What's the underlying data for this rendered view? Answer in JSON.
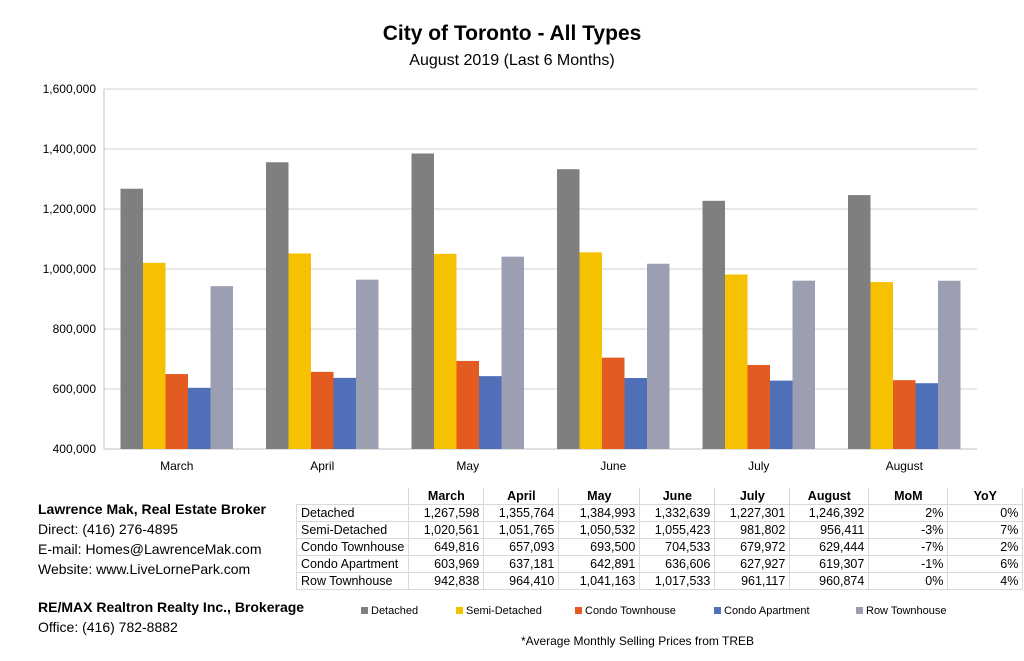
{
  "chart_data": {
    "type": "bar",
    "title": "City of Toronto - All Types",
    "subtitle": "August 2019 (Last 6 Months)",
    "xlabel": "",
    "ylabel": "",
    "ylim": [
      400000,
      1600000
    ],
    "yticks": [
      400000,
      600000,
      800000,
      1000000,
      1200000,
      1400000,
      1600000
    ],
    "ytick_labels": [
      "400,000",
      "600,000",
      "800,000",
      "1,000,000",
      "1,200,000",
      "1,400,000",
      "1,600,000"
    ],
    "grid": true,
    "legend_position": "bottom",
    "categories": [
      "March",
      "April",
      "May",
      "June",
      "July",
      "August"
    ],
    "series": [
      {
        "name": "Detached",
        "color": "#7f7f7f",
        "values": [
          1267598,
          1355764,
          1384993,
          1332639,
          1227301,
          1246392
        ]
      },
      {
        "name": "Semi-Detached",
        "color": "#f5c100",
        "values": [
          1020561,
          1051765,
          1050532,
          1055423,
          981802,
          956411
        ]
      },
      {
        "name": "Condo Townhouse",
        "color": "#e35b21",
        "values": [
          649816,
          657093,
          693500,
          704533,
          679972,
          629444
        ]
      },
      {
        "name": "Condo Apartment",
        "color": "#4f6fb8",
        "values": [
          603969,
          637181,
          642891,
          636606,
          627927,
          619307
        ]
      },
      {
        "name": "Row Townhouse",
        "color": "#9c9fb1",
        "values": [
          942838,
          964410,
          1041163,
          1017533,
          961117,
          960874
        ]
      }
    ]
  },
  "table": {
    "headers": [
      "March",
      "April",
      "May",
      "June",
      "July",
      "August",
      "MoM",
      "YoY"
    ],
    "rows": [
      {
        "label": "Detached",
        "cells": [
          "1,267,598",
          "1,355,764",
          "1,384,993",
          "1,332,639",
          "1,227,301",
          "1,246,392",
          "2%",
          "0%"
        ]
      },
      {
        "label": "Semi-Detached",
        "cells": [
          "1,020,561",
          "1,051,765",
          "1,050,532",
          "1,055,423",
          "981,802",
          "956,411",
          "-3%",
          "7%"
        ]
      },
      {
        "label": "Condo Townhouse",
        "cells": [
          "649,816",
          "657,093",
          "693,500",
          "704,533",
          "679,972",
          "629,444",
          "-7%",
          "2%"
        ]
      },
      {
        "label": "Condo Apartment",
        "cells": [
          "603,969",
          "637,181",
          "642,891",
          "636,606",
          "627,927",
          "619,307",
          "-1%",
          "6%"
        ]
      },
      {
        "label": "Row Townhouse",
        "cells": [
          "942,838",
          "964,410",
          "1,041,163",
          "1,017,533",
          "961,117",
          "960,874",
          "0%",
          "4%"
        ]
      }
    ]
  },
  "contact": {
    "name": "Lawrence Mak, Real Estate Broker",
    "direct": "Direct:  (416) 276-4895",
    "email": "E-mail:  Homes@LawrenceMak.com",
    "website": "Website: www.LiveLornePark.com",
    "brokerage": "RE/MAX Realtron Realty Inc., Brokerage",
    "office": "Office: (416) 782-8882"
  },
  "footnote": "*Average Monthly Selling Prices  from TREB"
}
